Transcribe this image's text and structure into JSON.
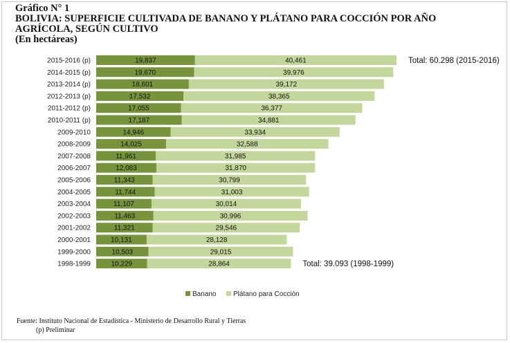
{
  "header": {
    "graph_number": "Gráfico N° 1",
    "title_line1": "BOLIVIA: SUPERFICIE CULTIVADA DE BANANO Y PLÁTANO PARA COCCIÓN POR AÑO",
    "title_line2": "AGRÍCOLA, SEGÚN CULTIVO",
    "units": "(En hectáreas)"
  },
  "chart_data": {
    "type": "bar",
    "orientation": "horizontal",
    "stacked": true,
    "categories": [
      "2015-2016 (p)",
      "2014-2015 (p)",
      "2013-2014 (p)",
      "2012-2013 (p)",
      "2011-2012 (p)",
      "2010-2011 (p)",
      "2009-2010",
      "2008-2009",
      "2007-2008",
      "2006-2007",
      "2005-2006",
      "2004-2005",
      "2003-2004",
      "2002-2003",
      "2001-2002",
      "2000-2001",
      "1999-2000",
      "1998-1999"
    ],
    "series": [
      {
        "name": "Banano",
        "color": "#77933c",
        "values": [
          19837,
          19670,
          18601,
          17532,
          17055,
          17187,
          14946,
          14025,
          11961,
          12083,
          11343,
          11744,
          11107,
          11463,
          11321,
          10131,
          10503,
          10229
        ],
        "labels": [
          "19,837",
          "19,670",
          "18,601",
          "17,532",
          "17,055",
          "17,187",
          "14,946",
          "14,025",
          "11,961",
          "12,083",
          "11,343",
          "11,744",
          "11,107",
          "11,463",
          "11,321",
          "10,131",
          "10,503",
          "10,229"
        ]
      },
      {
        "name": "Plátano para Cocción",
        "color": "#c3d69b",
        "values": [
          40461,
          39976,
          39172,
          38365,
          36377,
          34881,
          33934,
          32588,
          31985,
          31870,
          30799,
          31003,
          30014,
          30996,
          29546,
          28128,
          29015,
          28864
        ],
        "labels": [
          "40,461",
          "39,976",
          "39,172",
          "38,365",
          "36,377",
          "34,881",
          "33,934",
          "32,588",
          "31,985",
          "31,870",
          "30,799",
          "31,003",
          "30,014",
          "30,996",
          "29,546",
          "28,128",
          "29,015",
          "28,864"
        ]
      }
    ],
    "annotations": [
      {
        "text": "Total: 60.298 (2015-2016)",
        "category": "2015-2016 (p)"
      },
      {
        "text": "Total: 39.093 (1998-1999)",
        "category": "1998-1999"
      }
    ],
    "legend": "bottom",
    "grid": false
  },
  "footer": {
    "source": "Fuente: Instituto Nacional de Estadística - Ministerio de Desarrollo Rural y Tierras",
    "note": "(p) Preliminar"
  }
}
